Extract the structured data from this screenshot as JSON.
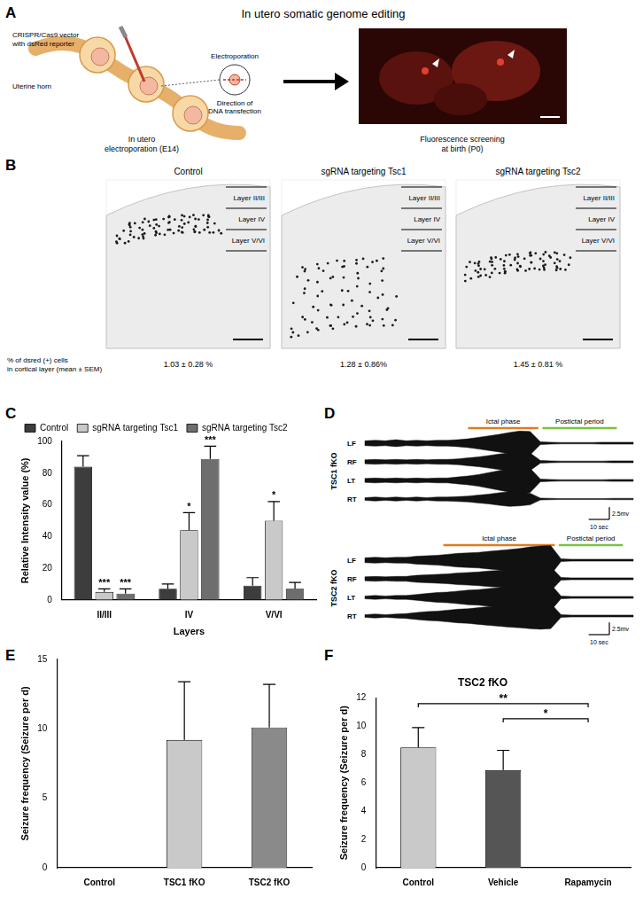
{
  "panel_letters": [
    "A",
    "B",
    "C",
    "D",
    "E",
    "F"
  ],
  "panels": {
    "A": {
      "title": "In utero somatic genome editing",
      "vector_label": [
        "CRISPR/Cas9 vector",
        "with dsRed reporter"
      ],
      "horn_label": "Uterine horn",
      "electroporation_label": "Electroporation",
      "direction_label": [
        "Direction of",
        "DNA transfection"
      ],
      "step1_caption": [
        "In utero",
        "electroporation (E14)"
      ],
      "step2_caption": [
        "Fluorescence screening",
        "at birth (P0)"
      ]
    },
    "B": {
      "conditions": [
        {
          "title": "Control",
          "percent": "1.03 ± 0.28 %"
        },
        {
          "title": "sgRNA targeting Tsc1",
          "percent": "1.28 ± 0.86%"
        },
        {
          "title": "sgRNA targeting Tsc2",
          "percent": "1.45 ± 0.81 %"
        }
      ],
      "layers": [
        "Layer II/III",
        "Layer IV",
        "Layer V/VI"
      ],
      "percent_caption": [
        "% of dsred (+) cells",
        "in cortical layer (mean ± SEM)"
      ]
    },
    "D": {
      "recordings": [
        {
          "name": "TSC1 fKO",
          "ictal_label": "Ictal phase",
          "postictal_label": "Postictal period",
          "duration": 130,
          "sample_step": 5,
          "ictal": [
            50,
            84
          ],
          "postictal": [
            86,
            122
          ],
          "scale": {
            "amplitude": 2.5,
            "amplitude_label": "2.5mv",
            "time": 10,
            "time_label": "10 sec"
          },
          "channels": [
            {
              "name": "LF",
              "envelope": [
                0.5,
                0.6,
                0.5,
                0.7,
                0.5,
                0.6,
                0.5,
                0.6,
                0.6,
                0.7,
                0.9,
                1.2,
                1.5,
                1.8,
                2.2,
                2.5,
                2.4,
                0.3,
                0.2,
                0.15,
                0.15,
                0.15,
                0.15,
                0.2,
                0.2,
                0.2,
                0.2
              ]
            },
            {
              "name": "RF",
              "envelope": [
                0.4,
                0.5,
                0.4,
                0.5,
                0.4,
                0.5,
                0.4,
                0.5,
                0.5,
                0.6,
                0.8,
                1.0,
                1.3,
                1.6,
                1.8,
                1.9,
                1.8,
                0.3,
                0.2,
                0.15,
                0.15,
                0.15,
                0.15,
                0.15,
                0.2,
                0.2,
                0.2
              ]
            },
            {
              "name": "LT",
              "envelope": [
                0.4,
                0.5,
                0.4,
                0.5,
                0.4,
                0.5,
                0.4,
                0.5,
                0.5,
                0.7,
                0.9,
                1.2,
                1.6,
                2.0,
                2.4,
                2.7,
                2.5,
                0.3,
                0.2,
                0.15,
                0.15,
                0.15,
                0.15,
                0.15,
                0.2,
                0.2,
                0.2
              ]
            },
            {
              "name": "RT",
              "envelope": [
                0.3,
                0.4,
                0.3,
                0.4,
                0.3,
                0.4,
                0.3,
                0.4,
                0.4,
                0.5,
                0.6,
                0.8,
                1.0,
                1.3,
                1.5,
                1.4,
                1.2,
                0.2,
                0.15,
                0.1,
                0.1,
                0.1,
                0.1,
                0.1,
                0.15,
                0.15,
                0.15
              ]
            }
          ]
        },
        {
          "name": "TSC2 fKO",
          "ictal_label": "Ictal phase",
          "postictal_label": "Postictal period",
          "duration": 130,
          "sample_step": 5,
          "ictal": [
            38,
            92
          ],
          "postictal": [
            94,
            125
          ],
          "scale": {
            "amplitude": 2.5,
            "amplitude_label": "2.5mv",
            "time": 10,
            "time_label": "10 sec"
          },
          "channels": [
            {
              "name": "LF",
              "envelope": [
                0.5,
                0.6,
                0.5,
                0.6,
                0.6,
                0.8,
                0.9,
                1.0,
                1.2,
                1.4,
                1.5,
                1.6,
                1.8,
                2.0,
                2.2,
                2.4,
                2.7,
                2.9,
                3.0,
                0.3,
                0.2,
                0.2,
                0.2,
                0.2,
                0.2,
                0.2,
                0.2
              ]
            },
            {
              "name": "RF",
              "envelope": [
                0.4,
                0.5,
                0.4,
                0.5,
                0.5,
                0.7,
                0.8,
                0.9,
                1.0,
                1.2,
                1.3,
                1.4,
                1.6,
                1.7,
                1.9,
                2.0,
                2.2,
                2.4,
                2.5,
                0.3,
                0.2,
                0.2,
                0.2,
                0.2,
                0.2,
                0.2,
                0.2
              ]
            },
            {
              "name": "LT",
              "envelope": [
                0.3,
                0.4,
                0.3,
                0.4,
                0.4,
                0.6,
                0.8,
                1.0,
                1.1,
                1.3,
                1.5,
                1.6,
                1.8,
                2.0,
                2.2,
                2.4,
                2.6,
                2.8,
                2.7,
                0.3,
                0.2,
                0.2,
                0.2,
                0.2,
                0.2,
                0.2,
                0.2
              ]
            },
            {
              "name": "RT",
              "envelope": [
                0.3,
                0.4,
                0.3,
                0.4,
                0.5,
                0.7,
                0.9,
                1.0,
                1.2,
                1.4,
                1.5,
                1.7,
                1.9,
                2.1,
                2.3,
                2.4,
                2.6,
                2.7,
                2.6,
                0.3,
                0.2,
                0.2,
                0.2,
                0.2,
                0.2,
                0.2,
                0.2
              ]
            }
          ]
        }
      ]
    }
  },
  "chart_data": [
    {
      "type": "bar",
      "categories": [
        "II/III",
        "IV",
        "V/VI"
      ],
      "x_label": "Layers",
      "y_label": "Relative Intensity value (%)",
      "ylim": [
        0,
        100
      ],
      "yticks": [
        0,
        20,
        40,
        60,
        80,
        100
      ],
      "grid": false,
      "legend": "top-left",
      "series": [
        {
          "name": "Control",
          "color": "#3d3d3d",
          "values": [
            84,
            7,
            9
          ],
          "errors": [
            7,
            3,
            5
          ],
          "significance": [
            null,
            null,
            null
          ]
        },
        {
          "name": "sgRNA targeting Tsc1",
          "color": "#c9c9c9",
          "values": [
            5,
            44,
            50
          ],
          "errors": [
            2,
            11,
            12
          ],
          "significance": [
            "***",
            "*",
            "*"
          ]
        },
        {
          "name": "sgRNA targeting Tsc2",
          "color": "#6e6e6e",
          "values": [
            4,
            89,
            7
          ],
          "errors": [
            3,
            8,
            4
          ],
          "significance": [
            "***",
            "***",
            null
          ]
        }
      ]
    },
    {
      "type": "bar",
      "categories": [
        "Control",
        "TSC1 fKO",
        "TSC2 fKO"
      ],
      "values": [
        0,
        9.2,
        10.1
      ],
      "errors": [
        null,
        4.2,
        3.1
      ],
      "colors": [
        "#3d3d3d",
        "#c9c9c9",
        "#8a8a8a"
      ],
      "y_label": "Seizure frequency (Seizure per d)",
      "ylim": [
        0,
        15
      ],
      "yticks": [
        0,
        5,
        10,
        15
      ],
      "grid": false
    },
    {
      "type": "bar",
      "title": "TSC2 fKO",
      "categories": [
        "Control",
        "Vehicle",
        "Rapamycin"
      ],
      "values": [
        8.5,
        6.9,
        0
      ],
      "errors": [
        1.4,
        1.4,
        null
      ],
      "colors": [
        "#c9c9c9",
        "#555555",
        "#8a8a8a"
      ],
      "y_label": "Seizure frequency (Seizure per d)",
      "ylim": [
        0,
        12
      ],
      "yticks": [
        0,
        2,
        4,
        6,
        8,
        10,
        12
      ],
      "grid": false,
      "comparisons": [
        {
          "from": "Control",
          "to": "Rapamycin",
          "label": "**"
        },
        {
          "from": "Vehicle",
          "to": "Rapamycin",
          "label": "*"
        }
      ]
    }
  ]
}
